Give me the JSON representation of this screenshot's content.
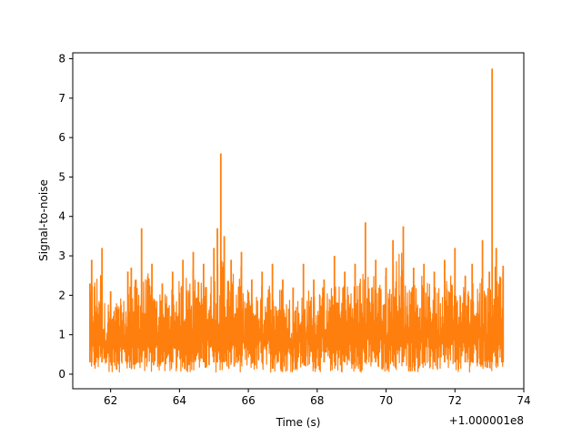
{
  "chart_data": {
    "type": "line",
    "title": "",
    "xlabel": "Time (s)",
    "ylabel": "Signal-to-noise",
    "x_offset_label": "+1.000001e8",
    "xlim": [
      60.9,
      74.0
    ],
    "ylim": [
      -0.37,
      8.15
    ],
    "x_ticks": [
      62,
      64,
      66,
      68,
      70,
      72,
      74
    ],
    "x_tick_labels": [
      "62",
      "64",
      "66",
      "68",
      "70",
      "72",
      "74"
    ],
    "y_ticks": [
      0,
      1,
      2,
      3,
      4,
      5,
      6,
      7,
      8
    ],
    "y_tick_labels": [
      "0",
      "1",
      "2",
      "3",
      "4",
      "5",
      "6",
      "7",
      "8"
    ],
    "grid": false,
    "line_color": "#ff7f0e",
    "series": [
      {
        "x": [
          61.4,
          61.45,
          61.75,
          62.0,
          62.5,
          62.6,
          62.9,
          63.2,
          63.5,
          63.8,
          64.1,
          64.4,
          64.7,
          65.0,
          65.1,
          65.2,
          65.3,
          65.5,
          65.8,
          66.1,
          66.4,
          66.7,
          67.0,
          67.3,
          67.6,
          67.9,
          68.2,
          68.5,
          68.8,
          69.1,
          69.4,
          69.7,
          70.0,
          70.2,
          70.5,
          70.8,
          71.1,
          71.4,
          71.7,
          72.0,
          72.3,
          72.5,
          72.8,
          73.0,
          73.08,
          73.2,
          73.4
        ],
        "y": [
          2.3,
          2.9,
          3.2,
          2.1,
          2.6,
          2.7,
          3.7,
          2.8,
          2.3,
          2.6,
          2.9,
          3.1,
          2.8,
          3.2,
          3.7,
          5.6,
          3.5,
          2.9,
          3.1,
          2.4,
          2.6,
          2.8,
          2.4,
          2.2,
          2.8,
          2.4,
          2.4,
          3.0,
          2.6,
          2.8,
          3.85,
          2.9,
          2.7,
          3.4,
          3.75,
          2.7,
          2.8,
          2.6,
          2.9,
          3.2,
          2.5,
          2.8,
          3.4,
          2.6,
          7.75,
          3.2,
          2.75
        ]
      }
    ]
  }
}
